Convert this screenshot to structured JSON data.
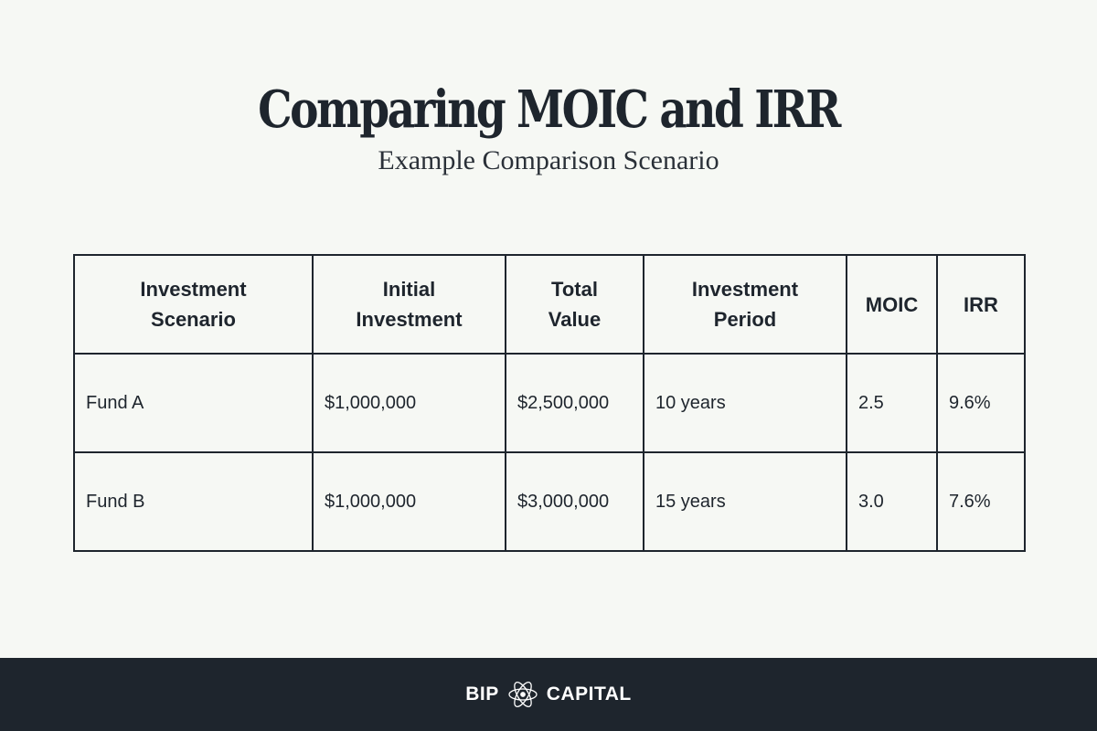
{
  "header": {
    "title": "Comparing MOIC and IRR",
    "subtitle": "Example Comparison Scenario"
  },
  "table": {
    "columns": [
      {
        "line1": "Investment",
        "line2": "Scenario"
      },
      {
        "line1": "Initial",
        "line2": "Investment"
      },
      {
        "line1": "Total",
        "line2": "Value"
      },
      {
        "line1": "Investment",
        "line2": "Period"
      },
      {
        "line1": "MOIC",
        "line2": ""
      },
      {
        "line1": "IRR",
        "line2": ""
      }
    ],
    "rows": [
      [
        "Fund A",
        "$1,000,000",
        "$2,500,000",
        "10 years",
        "2.5",
        "9.6%"
      ],
      [
        "Fund B",
        "$1,000,000",
        "$3,000,000",
        "15 years",
        "3.0",
        "7.6%"
      ]
    ]
  },
  "footer": {
    "brand_left": "BIP",
    "brand_right": "CAPITAL",
    "logo_icon": "atom-icon",
    "background_color": "#1e252d"
  }
}
